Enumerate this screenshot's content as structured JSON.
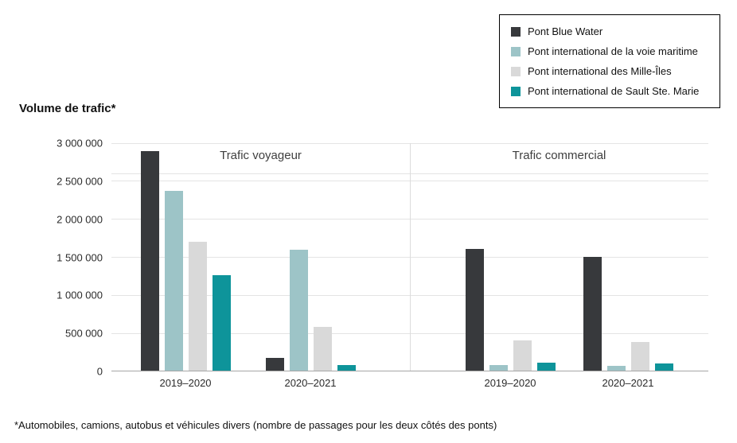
{
  "footnote": "*Automobiles, camions, autobus et véhicules divers (nombre de passages pour les deux côtés des ponts)",
  "legend": {
    "items": [
      {
        "label": "Pont Blue Water",
        "color": "#37393c"
      },
      {
        "label": "Pont international de la voie maritime",
        "color": "#9dc4c7"
      },
      {
        "label": "Pont international des Mille-Îles",
        "color": "#d9d9d9"
      },
      {
        "label": "Pont international de Sault Ste. Marie",
        "color": "#0e949a"
      }
    ]
  },
  "chart_data": {
    "type": "bar",
    "title": "Volume de trafic*",
    "sections": [
      "Trafic voyageur",
      "Trafic commercial"
    ],
    "groups": [
      {
        "section": "Trafic voyageur",
        "category": "2019–2020"
      },
      {
        "section": "Trafic voyageur",
        "category": "2020–2021"
      },
      {
        "section": "Trafic commercial",
        "category": "2019–2020"
      },
      {
        "section": "Trafic commercial",
        "category": "2020–2021"
      }
    ],
    "series": [
      {
        "name": "Pont Blue Water",
        "color": "#37393c",
        "values": [
          2880000,
          165000,
          1600000,
          1490000
        ]
      },
      {
        "name": "Pont international de la voie maritime",
        "color": "#9dc4c7",
        "values": [
          2360000,
          1590000,
          75000,
          65000
        ]
      },
      {
        "name": "Pont international des Mille-Îles",
        "color": "#d9d9d9",
        "values": [
          1690000,
          570000,
          400000,
          380000
        ]
      },
      {
        "name": "Pont international de Sault Ste. Marie",
        "color": "#0e949a",
        "values": [
          1250000,
          70000,
          100000,
          90000
        ]
      }
    ],
    "ylabel": "Volume de trafic*",
    "ylim": [
      0,
      3000000
    ],
    "ytick_step": 500000,
    "yticks": [
      "0",
      "500 000",
      "1 000 000",
      "1 500 000",
      "2 000 000",
      "2 500 000",
      "3 000 000"
    ],
    "grid": true,
    "legend_position": "top-right"
  }
}
